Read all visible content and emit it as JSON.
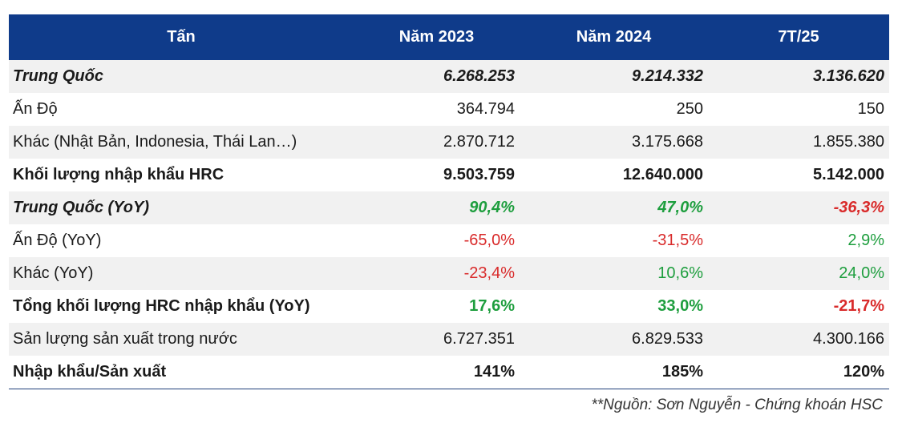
{
  "header": [
    "Tấn",
    "Năm 2023",
    "Năm 2024",
    "7T/25"
  ],
  "rows": [
    {
      "label": "Trung Quốc",
      "values": [
        "6.268.253",
        "9.214.332",
        "3.136.620"
      ],
      "signs": [
        "",
        "",
        ""
      ]
    },
    {
      "label": "Ấn Độ",
      "values": [
        "364.794",
        "250",
        "150"
      ],
      "signs": [
        "",
        "",
        ""
      ]
    },
    {
      "label": "Khác (Nhật Bản, Indonesia, Thái Lan…)",
      "values": [
        "2.870.712",
        "3.175.668",
        "1.855.380"
      ],
      "signs": [
        "",
        "",
        ""
      ]
    },
    {
      "label": "Khối lượng nhập khẩu HRC",
      "values": [
        "9.503.759",
        "12.640.000",
        "5.142.000"
      ],
      "signs": [
        "",
        "",
        ""
      ]
    },
    {
      "label": "Trung Quốc (YoY)",
      "values": [
        "90,4%",
        "47,0%",
        "-36,3%"
      ],
      "signs": [
        "pos",
        "pos",
        "neg"
      ]
    },
    {
      "label": "Ấn Độ (YoY)",
      "values": [
        "-65,0%",
        "-31,5%",
        "2,9%"
      ],
      "signs": [
        "neg",
        "neg",
        "pos"
      ]
    },
    {
      "label": "Khác (YoY)",
      "values": [
        "-23,4%",
        "10,6%",
        "24,0%"
      ],
      "signs": [
        "neg",
        "pos",
        "pos"
      ]
    },
    {
      "label": "Tổng khối lượng HRC nhập khẩu (YoY)",
      "values": [
        "17,6%",
        "33,0%",
        "-21,7%"
      ],
      "signs": [
        "pos",
        "pos",
        "neg"
      ]
    },
    {
      "label": "Sản lượng sản xuất trong nước",
      "values": [
        "6.727.351",
        "6.829.533",
        "4.300.166"
      ],
      "signs": [
        "",
        "",
        ""
      ]
    },
    {
      "label": "Nhập khẩu/Sản xuất",
      "values": [
        "141%",
        "185%",
        "120%"
      ],
      "signs": [
        "",
        "",
        ""
      ]
    }
  ],
  "source": "**Nguồn: Sơn Nguyễn - Chứng khoán HSC",
  "colors": {
    "header_bg": "#0f3b8a",
    "positive": "#1e9e3e",
    "negative": "#d92b2b",
    "row_shade": "#f1f1f1"
  }
}
